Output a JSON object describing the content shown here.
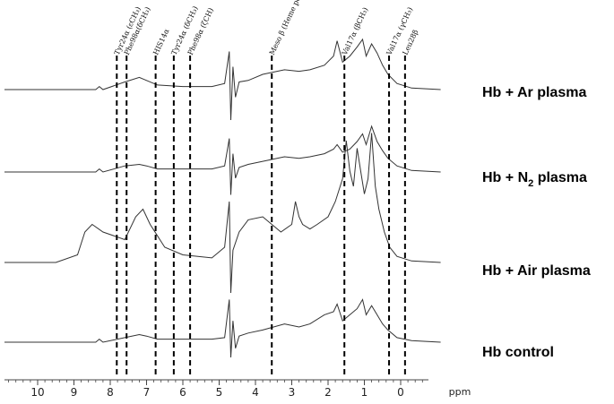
{
  "chart_data": {
    "type": "line",
    "title": "",
    "xlabel": "ppm",
    "ylabel": "",
    "xlim": [
      11.0,
      -1.1
    ],
    "x_reversed": true,
    "ticks": [
      10,
      9,
      8,
      7,
      6,
      5,
      4,
      3,
      2,
      1,
      0
    ],
    "tick_labels": [
      "10",
      "9",
      "8",
      "7",
      "6",
      "5",
      "4",
      "3",
      "2",
      "1",
      "0"
    ],
    "grid": false,
    "legend": "right of each trace",
    "color": "#333333",
    "reference_lines": [
      {
        "label": "Tyr24α (εCH₃)",
        "ppm": 7.82
      },
      {
        "label": "Phe98α(δCH₃)",
        "ppm": 7.55
      },
      {
        "label": "HIS14α",
        "ppm": 6.75
      },
      {
        "label": "Tyr24α (δCH₃)",
        "ppm": 6.25
      },
      {
        "label": "Phe98α (ζCH)",
        "ppm": 5.8
      },
      {
        "label": "Meso β (Heme peak)",
        "ppm": 3.55
      },
      {
        "label": "Val17α (βCH₃)",
        "ppm": 1.55
      },
      {
        "label": "Val17α (γCH₃)",
        "ppm": 0.32
      },
      {
        "label": "Leu28β",
        "ppm": -0.12
      }
    ],
    "series": [
      {
        "name": "Hb + Ar plasma",
        "name_main": "Hb + Ar plasma",
        "name_sub": "",
        "name_tail": "",
        "x": [
          11.0,
          9.5,
          8.4,
          8.3,
          8.2,
          7.6,
          7.2,
          7.0,
          6.7,
          6.0,
          5.2,
          4.85,
          4.72,
          4.68,
          4.62,
          4.55,
          4.45,
          4.2,
          3.8,
          3.2,
          2.8,
          2.5,
          2.1,
          1.85,
          1.75,
          1.6,
          1.4,
          1.2,
          1.05,
          0.95,
          0.8,
          0.65,
          0.5,
          0.35,
          0.1,
          -0.3,
          -1.1
        ],
        "y": [
          0,
          0,
          0,
          2,
          0,
          5,
          8,
          6,
          3,
          2,
          2,
          4,
          25,
          -20,
          15,
          -5,
          5,
          6,
          10,
          13,
          12,
          13,
          16,
          22,
          32,
          18,
          22,
          28,
          33,
          22,
          30,
          24,
          16,
          10,
          4,
          1,
          0
        ]
      },
      {
        "name": "Hb + N2 plasma",
        "name_main": "Hb + N",
        "name_sub": "2",
        "name_tail": " plasma",
        "x": [
          11.0,
          9.5,
          8.4,
          8.3,
          8.2,
          7.6,
          7.2,
          7.0,
          6.7,
          6.0,
          5.2,
          4.85,
          4.72,
          4.68,
          4.62,
          4.55,
          4.45,
          4.2,
          3.8,
          3.2,
          2.8,
          2.5,
          2.1,
          1.85,
          1.75,
          1.6,
          1.4,
          1.2,
          1.05,
          0.95,
          0.8,
          0.65,
          0.5,
          0.35,
          0.1,
          -0.3,
          -1.1
        ],
        "y": [
          0,
          0,
          0,
          2,
          0,
          4,
          5,
          4,
          2,
          2,
          2,
          4,
          22,
          -15,
          12,
          -4,
          3,
          5,
          7,
          10,
          9,
          10,
          12,
          15,
          18,
          13,
          15,
          20,
          25,
          18,
          30,
          20,
          14,
          9,
          4,
          1,
          0
        ]
      },
      {
        "name": "Hb + Air plasma",
        "name_main": "Hb + Air plasma",
        "name_sub": "",
        "name_tail": "",
        "x": [
          11.0,
          9.5,
          8.9,
          8.7,
          8.5,
          8.2,
          7.6,
          7.3,
          7.1,
          6.9,
          6.5,
          6.0,
          5.2,
          4.85,
          4.72,
          4.68,
          4.62,
          4.45,
          4.2,
          3.8,
          3.3,
          3.0,
          2.9,
          2.8,
          2.7,
          2.5,
          2.3,
          2.0,
          1.8,
          1.6,
          1.5,
          1.4,
          1.3,
          1.2,
          1.1,
          1.0,
          0.9,
          0.85,
          0.8,
          0.7,
          0.6,
          0.45,
          0.3,
          0.1,
          -0.3,
          -1.1
        ],
        "y": [
          0,
          0,
          5,
          20,
          25,
          20,
          15,
          30,
          35,
          25,
          10,
          5,
          3,
          10,
          40,
          -20,
          8,
          20,
          28,
          30,
          20,
          25,
          40,
          30,
          25,
          22,
          25,
          30,
          40,
          55,
          80,
          60,
          50,
          75,
          60,
          45,
          55,
          70,
          85,
          50,
          35,
          20,
          10,
          4,
          1,
          0
        ]
      },
      {
        "name": "Hb control",
        "name_main": "Hb control",
        "name_sub": "",
        "name_tail": "",
        "x": [
          11.0,
          9.5,
          8.4,
          8.3,
          8.2,
          7.6,
          7.2,
          7.0,
          6.7,
          6.0,
          5.2,
          4.85,
          4.72,
          4.68,
          4.62,
          4.55,
          4.45,
          4.2,
          3.8,
          3.2,
          2.8,
          2.5,
          2.1,
          1.85,
          1.75,
          1.6,
          1.4,
          1.2,
          1.05,
          0.95,
          0.8,
          0.65,
          0.5,
          0.35,
          0.1,
          -0.3,
          -1.1
        ],
        "y": [
          0,
          0,
          0,
          2,
          0,
          3,
          5,
          4,
          2,
          2,
          2,
          3,
          28,
          -10,
          14,
          -4,
          4,
          6,
          8,
          12,
          10,
          12,
          18,
          20,
          25,
          14,
          18,
          22,
          28,
          18,
          24,
          18,
          12,
          8,
          3,
          1,
          0
        ]
      }
    ]
  }
}
